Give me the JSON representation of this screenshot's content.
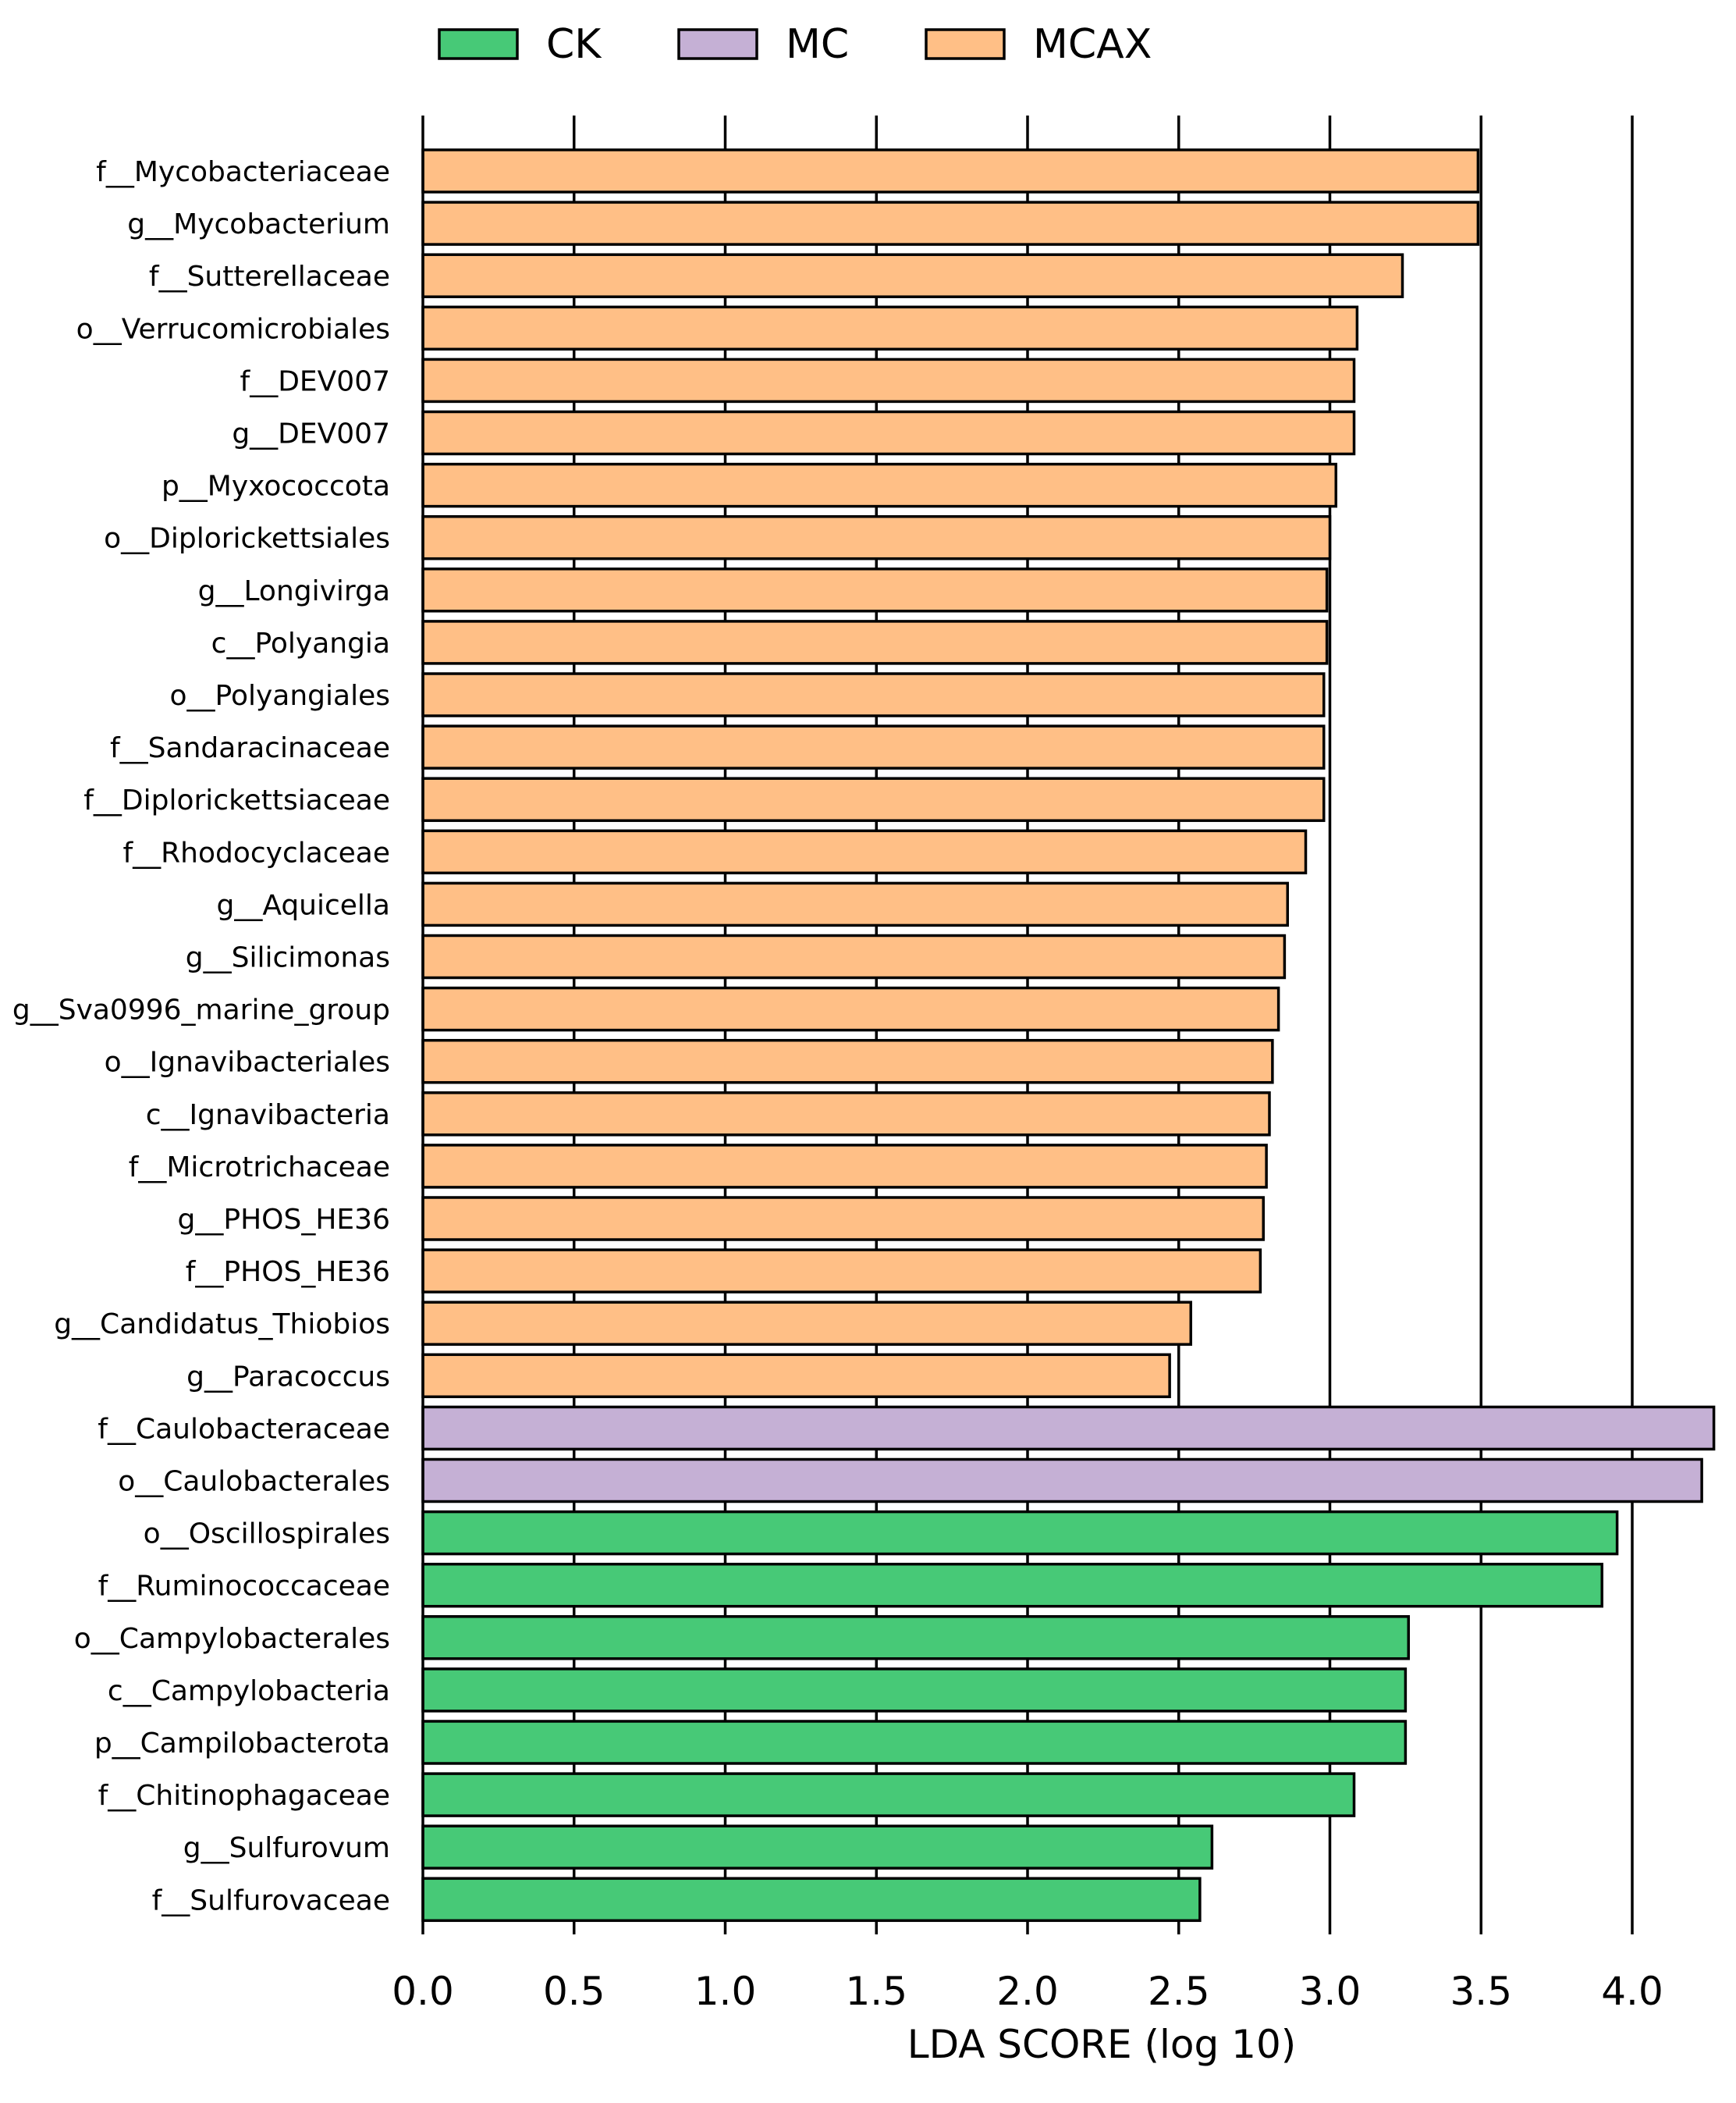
{
  "chart_data": {
    "type": "bar",
    "orientation": "horizontal",
    "title": "",
    "xlabel": "LDA SCORE (log 10)",
    "ylabel": "",
    "xlim": [
      0,
      4.28
    ],
    "xticks": [
      "0.0",
      "0.5",
      "1.0",
      "1.5",
      "2.0",
      "2.5",
      "3.0",
      "3.5",
      "4.0"
    ],
    "grid": "vertical",
    "legend_position": "top",
    "groups": [
      {
        "name": "CK",
        "color": "#47c977"
      },
      {
        "name": "MC",
        "color": "#c5b0d5"
      },
      {
        "name": "MCAX",
        "color": "#ffbf86"
      }
    ],
    "bars": [
      {
        "label": "f__Mycobacteriaceae",
        "value": 3.49,
        "group": "MCAX"
      },
      {
        "label": "g__Mycobacterium",
        "value": 3.49,
        "group": "MCAX"
      },
      {
        "label": "f__Sutterellaceae",
        "value": 3.24,
        "group": "MCAX"
      },
      {
        "label": "o__Verrucomicrobiales",
        "value": 3.09,
        "group": "MCAX"
      },
      {
        "label": "f__DEV007",
        "value": 3.08,
        "group": "MCAX"
      },
      {
        "label": "g__DEV007",
        "value": 3.08,
        "group": "MCAX"
      },
      {
        "label": "p__Myxococcota",
        "value": 3.02,
        "group": "MCAX"
      },
      {
        "label": "o__Diplorickettsiales",
        "value": 3.0,
        "group": "MCAX"
      },
      {
        "label": "g__Longivirga",
        "value": 2.99,
        "group": "MCAX"
      },
      {
        "label": "c__Polyangia",
        "value": 2.99,
        "group": "MCAX"
      },
      {
        "label": "o__Polyangiales",
        "value": 2.98,
        "group": "MCAX"
      },
      {
        "label": "f__Sandaracinaceae",
        "value": 2.98,
        "group": "MCAX"
      },
      {
        "label": "f__Diplorickettsiaceae",
        "value": 2.98,
        "group": "MCAX"
      },
      {
        "label": "f__Rhodocyclaceae",
        "value": 2.92,
        "group": "MCAX"
      },
      {
        "label": "g__Aquicella",
        "value": 2.86,
        "group": "MCAX"
      },
      {
        "label": "g__Silicimonas",
        "value": 2.85,
        "group": "MCAX"
      },
      {
        "label": "g__Sva0996_marine_group",
        "value": 2.83,
        "group": "MCAX"
      },
      {
        "label": "o__Ignavibacteriales",
        "value": 2.81,
        "group": "MCAX"
      },
      {
        "label": "c__Ignavibacteria",
        "value": 2.8,
        "group": "MCAX"
      },
      {
        "label": "f__Microtrichaceae",
        "value": 2.79,
        "group": "MCAX"
      },
      {
        "label": "g__PHOS_HE36",
        "value": 2.78,
        "group": "MCAX"
      },
      {
        "label": "f__PHOS_HE36",
        "value": 2.77,
        "group": "MCAX"
      },
      {
        "label": "g__Candidatus_Thiobios",
        "value": 2.54,
        "group": "MCAX"
      },
      {
        "label": "g__Paracoccus",
        "value": 2.47,
        "group": "MCAX"
      },
      {
        "label": "f__Caulobacteraceae",
        "value": 4.27,
        "group": "MC"
      },
      {
        "label": "o__Caulobacterales",
        "value": 4.23,
        "group": "MC"
      },
      {
        "label": "o__Oscillospirales",
        "value": 3.95,
        "group": "CK"
      },
      {
        "label": "f__Ruminococcaceae",
        "value": 3.9,
        "group": "CK"
      },
      {
        "label": "o__Campylobacterales",
        "value": 3.26,
        "group": "CK"
      },
      {
        "label": "c__Campylobacteria",
        "value": 3.25,
        "group": "CK"
      },
      {
        "label": "p__Campilobacterota",
        "value": 3.25,
        "group": "CK"
      },
      {
        "label": "f__Chitinophagaceae",
        "value": 3.08,
        "group": "CK"
      },
      {
        "label": "g__Sulfurovum",
        "value": 2.61,
        "group": "CK"
      },
      {
        "label": "f__Sulfurovaceae",
        "value": 2.57,
        "group": "CK"
      }
    ]
  }
}
